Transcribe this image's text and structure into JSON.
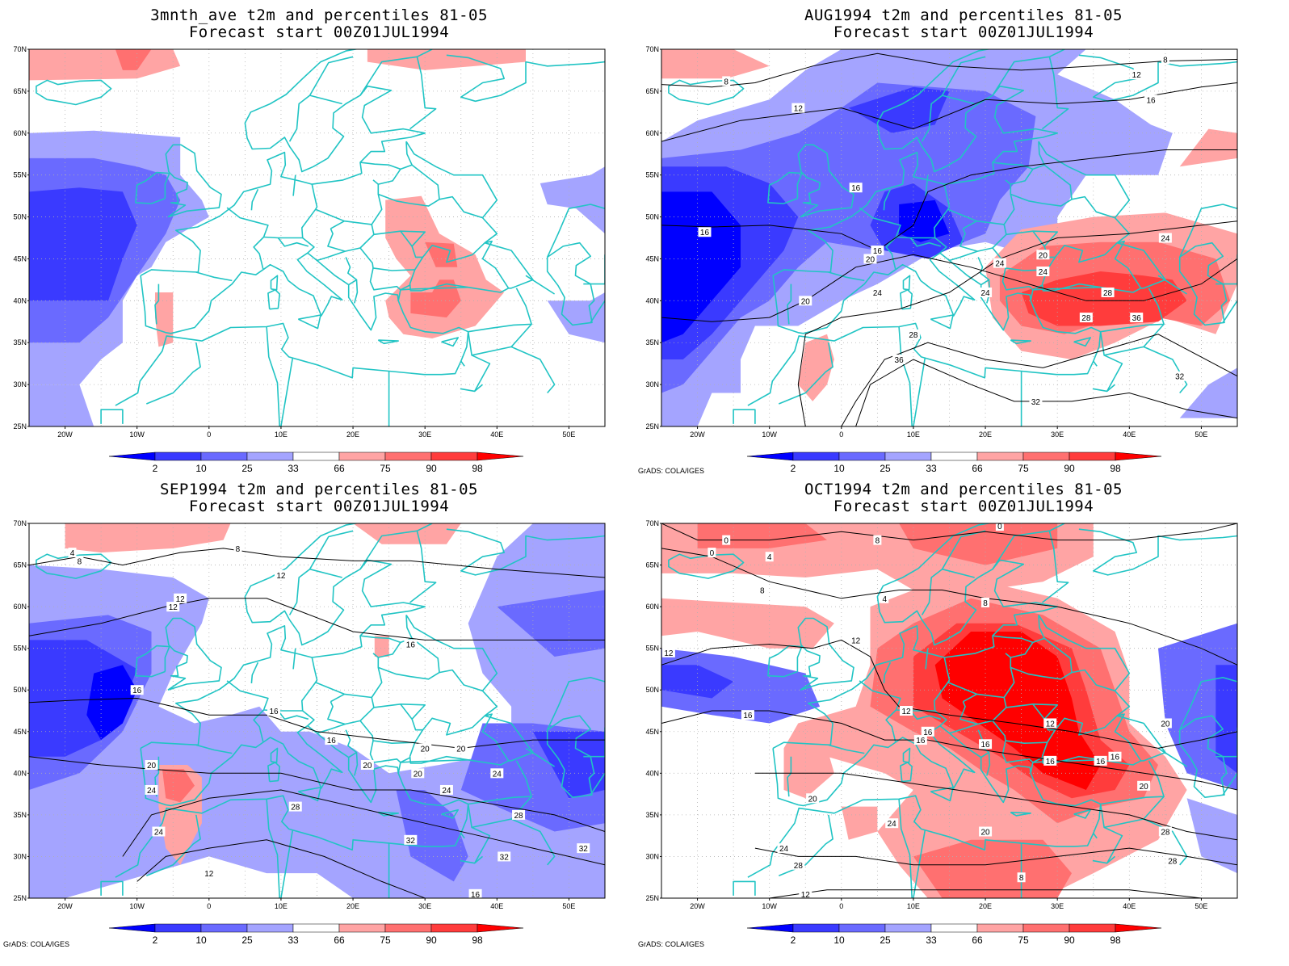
{
  "panels": [
    {
      "key": "p0",
      "title": "3mnth_ave t2m and percentiles 81-05",
      "subtitle": "Forecast start 00Z01JUL1994",
      "credit": ""
    },
    {
      "key": "p1",
      "title": "AUG1994 t2m and percentiles 81-05",
      "subtitle": "Forecast start 00Z01JUL1994",
      "credit": "GrADS: COLA/IGES"
    },
    {
      "key": "p2",
      "title": "SEP1994 t2m and percentiles 81-05",
      "subtitle": "Forecast start 00Z01JUL1994",
      "credit": "GrADS: COLA/IGES"
    },
    {
      "key": "p3",
      "title": "OCT1994 t2m and percentiles 81-05",
      "subtitle": "Forecast start 00Z01JUL1994",
      "credit": "GrADS: COLA/IGES"
    }
  ],
  "axes": {
    "lat_labels": [
      "70N",
      "65N",
      "60N",
      "55N",
      "50N",
      "45N",
      "40N",
      "35N",
      "30N",
      "25N"
    ],
    "lon_labels": [
      "20W",
      "10W",
      "0",
      "10E",
      "20E",
      "30E",
      "40E",
      "50E"
    ]
  },
  "colorbar": {
    "labels": [
      "2",
      "10",
      "25",
      "33",
      "66",
      "75",
      "90",
      "98"
    ],
    "colors": [
      "#0000ff",
      "#3a3aff",
      "#6a6aff",
      "#a4a4ff",
      "#ffffff",
      "#ffa4a4",
      "#ff7070",
      "#ff3c3c",
      "#ff0000"
    ]
  },
  "contour_labels": {
    "p0": [],
    "p1": [
      "8",
      "8",
      "12",
      "12",
      "16",
      "16",
      "16",
      "16",
      "20",
      "20",
      "20",
      "24",
      "24",
      "24",
      "24",
      "24",
      "28",
      "28",
      "28",
      "32",
      "32",
      "36",
      "36"
    ],
    "p2": [
      "4",
      "8",
      "8",
      "12",
      "12",
      "12",
      "16",
      "16",
      "16",
      "16",
      "20",
      "20",
      "20",
      "20",
      "20",
      "24",
      "24",
      "24",
      "24",
      "28",
      "28",
      "32",
      "32",
      "32",
      "12",
      "16"
    ],
    "p3": [
      "0",
      "0",
      "0",
      "4",
      "4",
      "8",
      "8",
      "8",
      "12",
      "12",
      "12",
      "12",
      "16",
      "16",
      "16",
      "16",
      "16",
      "16",
      "16",
      "20",
      "20",
      "20",
      "20",
      "24",
      "24",
      "28",
      "28",
      "28",
      "8",
      "12"
    ]
  },
  "colors": {
    "coastline": "#21c4c4",
    "contour": "#000000",
    "grid": "#b0b0b0"
  }
}
